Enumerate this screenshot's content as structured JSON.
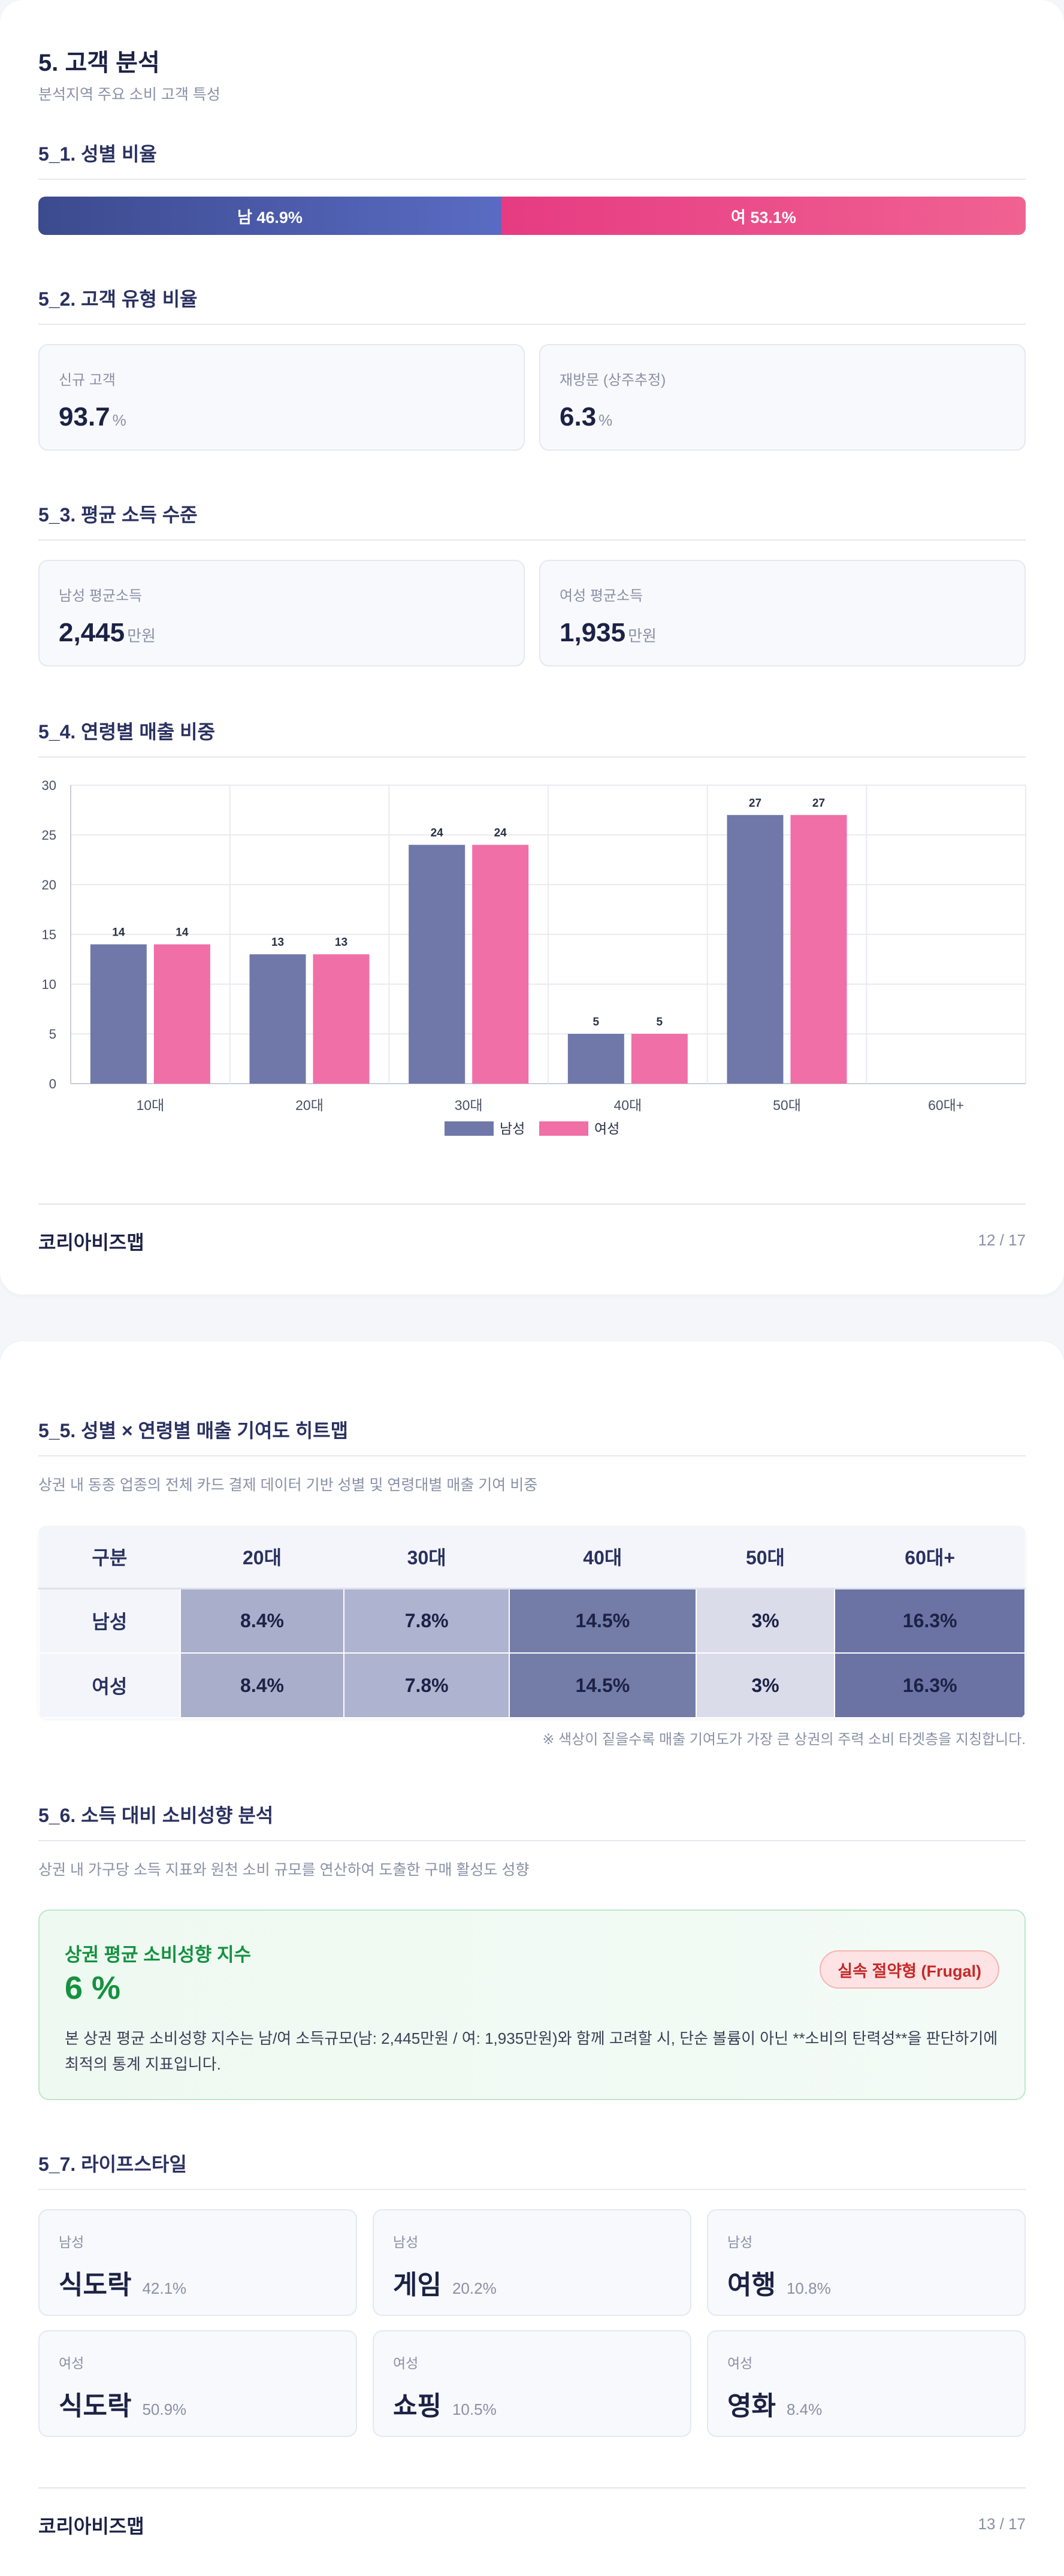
{
  "page1": {
    "title": "5. 고객 분석",
    "subtitle": "분석지역 주요 소비 고객 특성",
    "gender": {
      "section_title": "5_1. 성별 비율",
      "male_label": "남 46.9%",
      "female_label": "여 53.1%",
      "male_pct": 46.9,
      "female_pct": 53.1
    },
    "customer_type": {
      "section_title": "5_2. 고객 유형 비율",
      "cards": [
        {
          "label": "신규 고객",
          "value": "93.7",
          "unit": "%"
        },
        {
          "label": "재방문 (상주추정)",
          "value": "6.3",
          "unit": "%"
        }
      ]
    },
    "income": {
      "section_title": "5_3. 평균 소득 수준",
      "cards": [
        {
          "label": "남성 평균소득",
          "value": "2,445",
          "unit": "만원"
        },
        {
          "label": "여성 평균소득",
          "value": "1,935",
          "unit": "만원"
        }
      ]
    },
    "age_sales": {
      "section_title": "5_4. 연령별 매출 비중"
    },
    "footer": {
      "brand": "코리아비즈맵",
      "page": "12 / 17"
    }
  },
  "chart_data": {
    "type": "bar",
    "categories": [
      "10대",
      "20대",
      "30대",
      "40대",
      "50대",
      "60대+"
    ],
    "series": [
      {
        "name": "남성",
        "values": [
          14,
          13,
          24,
          5,
          27,
          null
        ],
        "labels": [
          "14",
          "13",
          "24",
          "5",
          "27",
          ""
        ],
        "color": "#6f78a8"
      },
      {
        "name": "여성",
        "values": [
          14,
          13,
          24,
          5,
          27,
          null
        ],
        "labels": [
          "14",
          "13",
          "24",
          "5",
          "27",
          ""
        ],
        "color": "#ef6fa6"
      }
    ],
    "ylim": [
      0,
      30
    ],
    "yticks": [
      "0",
      "5",
      "10",
      "15",
      "20",
      "25",
      "30"
    ],
    "ytick_values": [
      0,
      5,
      10,
      15,
      20,
      25,
      30
    ],
    "grid": true,
    "legend": "bottom-center"
  },
  "page2": {
    "heatmap": {
      "section_title": "5_5. 성별 × 연령별 매출 기여도 히트맵",
      "description": "상권 내 동종 업종의 전체 카드 결제 데이터 기반 성별 및 연령대별 매출 기여 비중",
      "headers": [
        "구분",
        "20대",
        "30대",
        "40대",
        "50대",
        "60대+"
      ],
      "rows": [
        {
          "label": "남성",
          "cells": [
            "8.4%",
            "7.8%",
            "14.5%",
            "3%",
            "16.3%"
          ]
        },
        {
          "label": "여성",
          "cells": [
            "8.4%",
            "7.8%",
            "14.5%",
            "3%",
            "16.3%"
          ]
        }
      ],
      "cell_colors": [
        "#a9aecb",
        "#aeb3cf",
        "#747ca8",
        "#dadcea",
        "#6a73a3"
      ],
      "note": "※ 색상이 짙을수록 매출 기여도가 가장 큰 상권의 주력 소비 타겟층을 지칭합니다."
    },
    "consumption": {
      "section_title": "5_6. 소득 대비 소비성향 분석",
      "description": "상권 내 가구당 소득 지표와 원천 소비 규모를 연산하여 도출한 구매 활성도 성향",
      "box_title": "상권 평균 소비성향 지수",
      "value": "6 %",
      "badge": "실속 절약형 (Frugal)",
      "text": "본 상권 평균 소비성향 지수는 남/여 소득규모(남: 2,445만원 / 여: 1,935만원)와 함께 고려할 시, 단순 볼륨이 아닌 **소비의 탄력성**을 판단하기에 최적의 통계 지표입니다."
    },
    "lifestyle": {
      "section_title": "5_7. 라이프스타일",
      "cards": [
        {
          "gender": "남성",
          "name": "식도락",
          "pct": "42.1%"
        },
        {
          "gender": "남성",
          "name": "게임",
          "pct": "20.2%"
        },
        {
          "gender": "남성",
          "name": "여행",
          "pct": "10.8%"
        },
        {
          "gender": "여성",
          "name": "식도락",
          "pct": "50.9%"
        },
        {
          "gender": "여성",
          "name": "쇼핑",
          "pct": "10.5%"
        },
        {
          "gender": "여성",
          "name": "영화",
          "pct": "8.4%"
        }
      ]
    },
    "footer": {
      "brand": "코리아비즈맵",
      "page": "13 / 17"
    }
  }
}
